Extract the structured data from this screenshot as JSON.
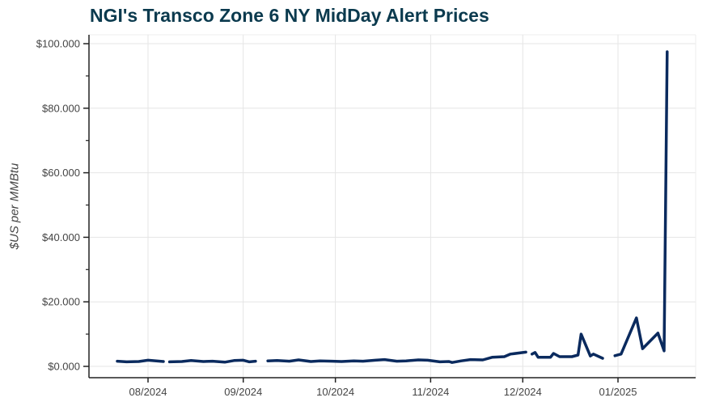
{
  "chart_data": {
    "type": "line",
    "title": "NGI's Transco Zone 6 NY MidDay Alert Prices",
    "xlabel": "",
    "ylabel": "$US per MMBtu",
    "ylim": [
      0,
      100
    ],
    "xlim": [
      "2024-07-18",
      "2025-01-25"
    ],
    "grid": true,
    "color": "#0a2a5e",
    "y_ticks": [
      "$0.000",
      "$20.000",
      "$40.000",
      "$60.000",
      "$80.000",
      "$100.000"
    ],
    "y_tick_values": [
      0,
      20,
      40,
      60,
      80,
      100
    ],
    "x_ticks": [
      "08/2024",
      "09/2024",
      "10/2024",
      "11/2024",
      "12/2024",
      "01/2025"
    ],
    "x_tick_values": [
      "2024-08-01",
      "2024-09-01",
      "2024-10-01",
      "2024-11-01",
      "2024-12-01",
      "2025-01-01"
    ],
    "series": [
      {
        "points": [
          [
            "2024-07-22",
            1.6
          ],
          [
            "2024-07-25",
            1.4
          ],
          [
            "2024-07-29",
            1.5
          ],
          [
            "2024-08-01",
            1.9
          ],
          [
            "2024-08-06",
            1.5
          ],
          [
            "2024-08-07",
            null
          ],
          [
            "2024-08-08",
            1.4
          ],
          [
            "2024-08-12",
            1.5
          ],
          [
            "2024-08-15",
            1.8
          ],
          [
            "2024-08-19",
            1.5
          ],
          [
            "2024-08-22",
            1.6
          ],
          [
            "2024-08-26",
            1.3
          ],
          [
            "2024-08-29",
            1.8
          ],
          [
            "2024-09-01",
            1.9
          ],
          [
            "2024-09-03",
            1.4
          ],
          [
            "2024-09-05",
            1.6
          ],
          [
            "2024-09-07",
            null
          ],
          [
            "2024-09-09",
            1.7
          ],
          [
            "2024-09-12",
            1.8
          ],
          [
            "2024-09-16",
            1.6
          ],
          [
            "2024-09-19",
            2.0
          ],
          [
            "2024-09-23",
            1.5
          ],
          [
            "2024-09-26",
            1.7
          ],
          [
            "2024-09-30",
            1.6
          ],
          [
            "2024-10-03",
            1.5
          ],
          [
            "2024-10-07",
            1.7
          ],
          [
            "2024-10-10",
            1.6
          ],
          [
            "2024-10-14",
            1.9
          ],
          [
            "2024-10-17",
            2.1
          ],
          [
            "2024-10-21",
            1.6
          ],
          [
            "2024-10-24",
            1.7
          ],
          [
            "2024-10-28",
            2.0
          ],
          [
            "2024-10-31",
            1.9
          ],
          [
            "2024-11-04",
            1.4
          ],
          [
            "2024-11-07",
            1.5
          ],
          [
            "2024-11-08",
            1.2
          ],
          [
            "2024-11-11",
            1.7
          ],
          [
            "2024-11-14",
            2.1
          ],
          [
            "2024-11-18",
            2.0
          ],
          [
            "2024-11-21",
            2.8
          ],
          [
            "2024-11-25",
            3.0
          ],
          [
            "2024-11-27",
            3.8
          ],
          [
            "2024-12-02",
            4.4
          ],
          [
            "2024-12-03",
            null
          ],
          [
            "2024-12-04",
            3.8
          ],
          [
            "2024-12-05",
            4.3
          ],
          [
            "2024-12-06",
            2.8
          ],
          [
            "2024-12-10",
            2.8
          ],
          [
            "2024-12-11",
            4.0
          ],
          [
            "2024-12-13",
            3.0
          ],
          [
            "2024-12-17",
            3.0
          ],
          [
            "2024-12-19",
            3.5
          ],
          [
            "2024-12-20",
            10.0
          ],
          [
            "2024-12-23",
            3.2
          ],
          [
            "2024-12-24",
            3.8
          ],
          [
            "2024-12-27",
            2.5
          ],
          [
            "2024-12-29",
            null
          ],
          [
            "2024-12-31",
            3.3
          ],
          [
            "2025-01-02",
            3.8
          ],
          [
            "2025-01-07",
            15.0
          ],
          [
            "2025-01-09",
            5.5
          ],
          [
            "2025-01-14",
            10.3
          ],
          [
            "2025-01-16",
            4.8
          ],
          [
            "2025-01-17",
            97.5
          ]
        ]
      }
    ]
  }
}
